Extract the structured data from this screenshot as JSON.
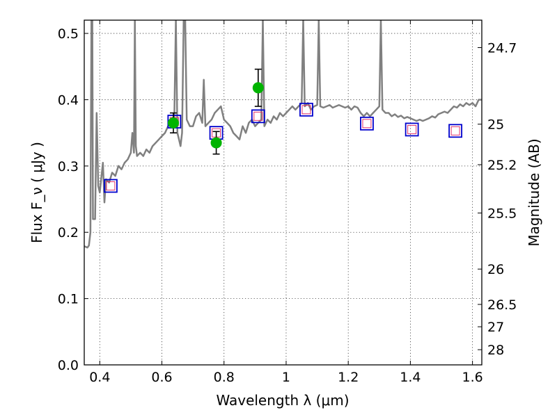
{
  "chart_data": {
    "type": "scatter",
    "title": "",
    "xlabel": "Wavelength  λ (μm)",
    "ylabel": "Flux  F_ν  ( μJy )",
    "ylabel_right": "Magnitude (AB)",
    "xlim": [
      0.35,
      1.63
    ],
    "ylim": [
      0.0,
      0.52
    ],
    "grid": true,
    "legend": "none",
    "x_ticks": [
      0.4,
      0.6,
      0.8,
      1.0,
      1.2,
      1.4,
      1.6
    ],
    "x_tick_labels": [
      "0.4",
      "0.6",
      "0.8",
      "1",
      "1.2",
      "1.4",
      "1.6"
    ],
    "y_ticks": [
      0.0,
      0.1,
      0.2,
      0.3,
      0.4,
      0.5
    ],
    "y_tick_labels": [
      "0.0",
      "0.1",
      "0.2",
      "0.3",
      "0.4",
      "0.5"
    ],
    "right_ticks": [
      {
        "label": "24.7",
        "flux": 0.4786
      },
      {
        "label": "25",
        "flux": 0.3631
      },
      {
        "label": "25.2",
        "flux": 0.302
      },
      {
        "label": "25.5",
        "flux": 0.2291
      },
      {
        "label": "26",
        "flux": 0.1445
      },
      {
        "label": "26.5",
        "flux": 0.0912
      },
      {
        "label": "27",
        "flux": 0.0575
      },
      {
        "label": "28",
        "flux": 0.0229
      }
    ],
    "colors": {
      "sed": "#808080",
      "observed": "#00b400",
      "error": "#000000",
      "model_box": "#0000cc",
      "model_inner": "#e0306a"
    },
    "series": [
      {
        "kind": "line",
        "points": [
          [
            0.35,
            0.179
          ],
          [
            0.36,
            0.177
          ],
          [
            0.365,
            0.18
          ],
          [
            0.37,
            0.2
          ],
          [
            0.373,
            0.52
          ],
          [
            0.376,
            0.52
          ],
          [
            0.378,
            0.22
          ],
          [
            0.385,
            0.22
          ],
          [
            0.39,
            0.38
          ],
          [
            0.395,
            0.27
          ],
          [
            0.4,
            0.26
          ],
          [
            0.41,
            0.305
          ],
          [
            0.415,
            0.245
          ],
          [
            0.42,
            0.28
          ],
          [
            0.43,
            0.275
          ],
          [
            0.44,
            0.29
          ],
          [
            0.45,
            0.285
          ],
          [
            0.46,
            0.3
          ],
          [
            0.47,
            0.295
          ],
          [
            0.48,
            0.305
          ],
          [
            0.49,
            0.31
          ],
          [
            0.5,
            0.32
          ],
          [
            0.505,
            0.35
          ],
          [
            0.51,
            0.32
          ],
          [
            0.513,
            0.52
          ],
          [
            0.516,
            0.33
          ],
          [
            0.52,
            0.315
          ],
          [
            0.53,
            0.32
          ],
          [
            0.54,
            0.315
          ],
          [
            0.55,
            0.325
          ],
          [
            0.56,
            0.32
          ],
          [
            0.57,
            0.33
          ],
          [
            0.58,
            0.335
          ],
          [
            0.59,
            0.34
          ],
          [
            0.6,
            0.345
          ],
          [
            0.61,
            0.35
          ],
          [
            0.62,
            0.36
          ],
          [
            0.63,
            0.37
          ],
          [
            0.64,
            0.375
          ],
          [
            0.645,
            0.52
          ],
          [
            0.65,
            0.35
          ],
          [
            0.655,
            0.34
          ],
          [
            0.66,
            0.33
          ],
          [
            0.665,
            0.35
          ],
          [
            0.67,
            0.52
          ],
          [
            0.675,
            0.52
          ],
          [
            0.68,
            0.37
          ],
          [
            0.69,
            0.36
          ],
          [
            0.7,
            0.36
          ],
          [
            0.71,
            0.375
          ],
          [
            0.72,
            0.38
          ],
          [
            0.73,
            0.365
          ],
          [
            0.735,
            0.43
          ],
          [
            0.74,
            0.36
          ],
          [
            0.75,
            0.365
          ],
          [
            0.76,
            0.37
          ],
          [
            0.77,
            0.38
          ],
          [
            0.78,
            0.385
          ],
          [
            0.79,
            0.39
          ],
          [
            0.8,
            0.37
          ],
          [
            0.81,
            0.365
          ],
          [
            0.82,
            0.36
          ],
          [
            0.83,
            0.35
          ],
          [
            0.84,
            0.345
          ],
          [
            0.85,
            0.34
          ],
          [
            0.86,
            0.36
          ],
          [
            0.87,
            0.35
          ],
          [
            0.88,
            0.365
          ],
          [
            0.89,
            0.37
          ],
          [
            0.9,
            0.36
          ],
          [
            0.91,
            0.365
          ],
          [
            0.92,
            0.37
          ],
          [
            0.925,
            0.52
          ],
          [
            0.93,
            0.36
          ],
          [
            0.94,
            0.37
          ],
          [
            0.95,
            0.365
          ],
          [
            0.96,
            0.375
          ],
          [
            0.97,
            0.37
          ],
          [
            0.98,
            0.38
          ],
          [
            0.99,
            0.375
          ],
          [
            1.0,
            0.38
          ],
          [
            1.01,
            0.385
          ],
          [
            1.02,
            0.39
          ],
          [
            1.03,
            0.385
          ],
          [
            1.04,
            0.39
          ],
          [
            1.05,
            0.395
          ],
          [
            1.055,
            0.52
          ],
          [
            1.06,
            0.39
          ],
          [
            1.07,
            0.395
          ],
          [
            1.08,
            0.385
          ],
          [
            1.09,
            0.39
          ],
          [
            1.1,
            0.392
          ],
          [
            1.105,
            0.52
          ],
          [
            1.11,
            0.39
          ],
          [
            1.12,
            0.388
          ],
          [
            1.13,
            0.39
          ],
          [
            1.14,
            0.392
          ],
          [
            1.15,
            0.388
          ],
          [
            1.16,
            0.39
          ],
          [
            1.17,
            0.392
          ],
          [
            1.18,
            0.39
          ],
          [
            1.19,
            0.388
          ],
          [
            1.2,
            0.39
          ],
          [
            1.21,
            0.385
          ],
          [
            1.22,
            0.39
          ],
          [
            1.23,
            0.388
          ],
          [
            1.24,
            0.38
          ],
          [
            1.25,
            0.375
          ],
          [
            1.26,
            0.38
          ],
          [
            1.27,
            0.375
          ],
          [
            1.28,
            0.38
          ],
          [
            1.29,
            0.385
          ],
          [
            1.3,
            0.39
          ],
          [
            1.305,
            0.52
          ],
          [
            1.31,
            0.385
          ],
          [
            1.32,
            0.38
          ],
          [
            1.33,
            0.38
          ],
          [
            1.34,
            0.375
          ],
          [
            1.35,
            0.378
          ],
          [
            1.36,
            0.374
          ],
          [
            1.37,
            0.376
          ],
          [
            1.38,
            0.372
          ],
          [
            1.39,
            0.374
          ],
          [
            1.4,
            0.372
          ],
          [
            1.41,
            0.37
          ],
          [
            1.42,
            0.368
          ],
          [
            1.43,
            0.37
          ],
          [
            1.44,
            0.368
          ],
          [
            1.45,
            0.37
          ],
          [
            1.46,
            0.372
          ],
          [
            1.47,
            0.375
          ],
          [
            1.48,
            0.373
          ],
          [
            1.49,
            0.378
          ],
          [
            1.5,
            0.38
          ],
          [
            1.51,
            0.382
          ],
          [
            1.52,
            0.38
          ],
          [
            1.53,
            0.385
          ],
          [
            1.54,
            0.39
          ],
          [
            1.55,
            0.388
          ],
          [
            1.56,
            0.393
          ],
          [
            1.57,
            0.39
          ],
          [
            1.58,
            0.395
          ],
          [
            1.59,
            0.392
          ],
          [
            1.6,
            0.395
          ],
          [
            1.61,
            0.39
          ],
          [
            1.62,
            0.4
          ],
          [
            1.63,
            0.4
          ]
        ]
      },
      {
        "kind": "model_boxes",
        "x": [
          0.435,
          0.64,
          0.775,
          0.91,
          1.065,
          1.26,
          1.405,
          1.545
        ],
        "y": [
          0.27,
          0.367,
          0.35,
          0.375,
          0.385,
          0.364,
          0.355,
          0.353
        ]
      },
      {
        "kind": "observed",
        "x": [
          0.637,
          0.775,
          0.91
        ],
        "y": [
          0.365,
          0.335,
          0.418
        ],
        "err": [
          0.015,
          0.017,
          0.028
        ]
      }
    ]
  }
}
